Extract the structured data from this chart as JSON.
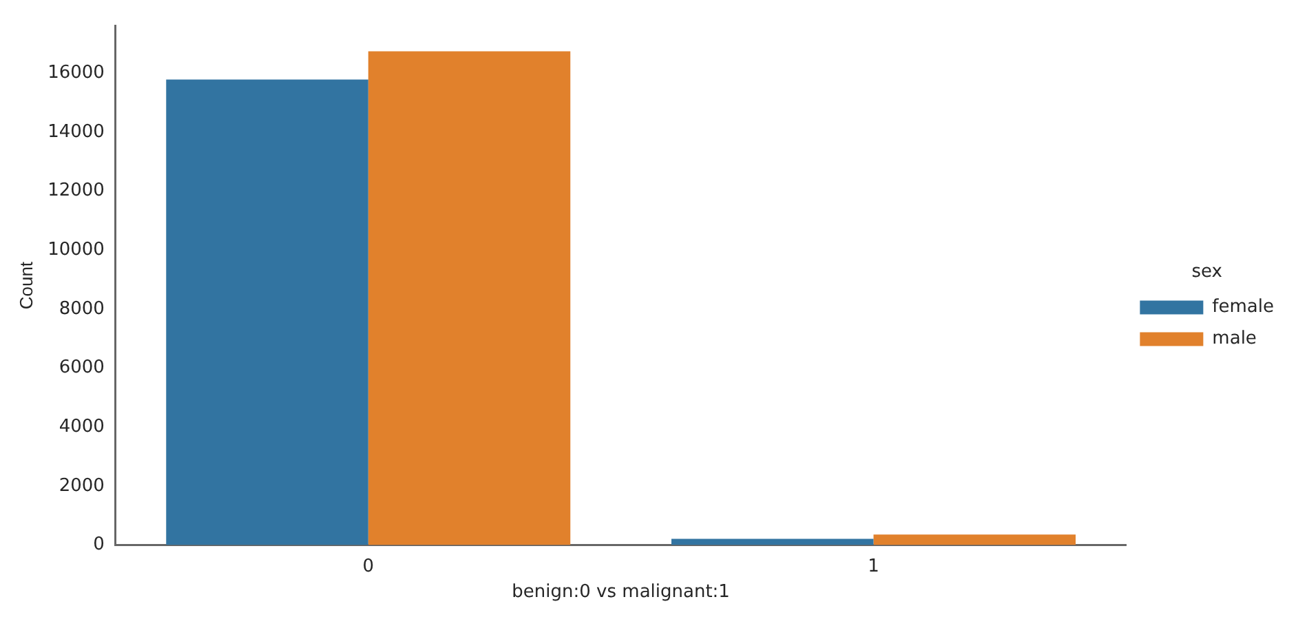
{
  "chart_data": {
    "type": "bar",
    "xlabel": "benign:0 vs malignant:1",
    "ylabel": "Count",
    "legend_title": "sex",
    "categories": [
      "0",
      "1"
    ],
    "series": [
      {
        "name": "female",
        "color": "#3274a1",
        "values": [
          15780,
          210
        ]
      },
      {
        "name": "male",
        "color": "#e1812c",
        "values": [
          16740,
          360
        ]
      }
    ],
    "ylim": [
      0,
      17600
    ],
    "yticks": [
      0,
      2000,
      4000,
      6000,
      8000,
      10000,
      12000,
      14000,
      16000
    ],
    "grid": false,
    "legend": "right"
  }
}
